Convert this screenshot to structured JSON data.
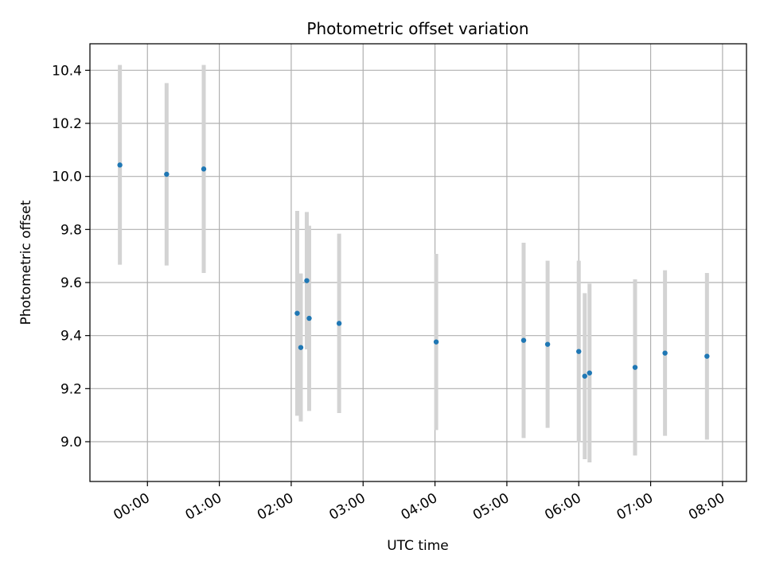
{
  "chart_data": {
    "type": "scatter",
    "title": "Photometric offset variation",
    "xlabel": "UTC time",
    "ylabel": "Photometric offset",
    "x_ticks": [
      "00:00",
      "01:00",
      "02:00",
      "03:00",
      "04:00",
      "05:00",
      "06:00",
      "07:00",
      "08:00"
    ],
    "y_ticks": [
      "9.0",
      "9.2",
      "9.4",
      "9.6",
      "9.8",
      "10.0",
      "10.2",
      "10.4"
    ],
    "xlim": [
      "-00:48",
      "08:20"
    ],
    "ylim": [
      8.85,
      10.5
    ],
    "grid": true,
    "series": [
      {
        "marker_color": "#1f77b4",
        "errorbar_color": "#d3d3d3",
        "points": [
          {
            "x": "-00:23",
            "y": 10.043,
            "err_low": 9.667,
            "err_high": 10.42
          },
          {
            "x": "00:16",
            "y": 10.008,
            "err_low": 9.664,
            "err_high": 10.352
          },
          {
            "x": "00:47",
            "y": 10.028,
            "err_low": 9.636,
            "err_high": 10.42
          },
          {
            "x": "02:05",
            "y": 9.484,
            "err_low": 9.098,
            "err_high": 9.87
          },
          {
            "x": "02:08",
            "y": 9.355,
            "err_low": 9.076,
            "err_high": 9.634
          },
          {
            "x": "02:13",
            "y": 9.607,
            "err_low": 9.348,
            "err_high": 9.866
          },
          {
            "x": "02:15",
            "y": 9.465,
            "err_low": 9.116,
            "err_high": 9.814
          },
          {
            "x": "02:40",
            "y": 9.446,
            "err_low": 9.108,
            "err_high": 9.784
          },
          {
            "x": "04:01",
            "y": 9.376,
            "err_low": 9.044,
            "err_high": 9.708
          },
          {
            "x": "05:14",
            "y": 9.382,
            "err_low": 9.014,
            "err_high": 9.75
          },
          {
            "x": "05:34",
            "y": 9.367,
            "err_low": 9.052,
            "err_high": 9.682
          },
          {
            "x": "06:00",
            "y": 9.34,
            "err_low": 8.998,
            "err_high": 9.682
          },
          {
            "x": "06:05",
            "y": 9.247,
            "err_low": 8.934,
            "err_high": 9.56
          },
          {
            "x": "06:09",
            "y": 9.259,
            "err_low": 8.922,
            "err_high": 9.596
          },
          {
            "x": "06:47",
            "y": 9.28,
            "err_low": 8.948,
            "err_high": 9.612
          },
          {
            "x": "07:12",
            "y": 9.334,
            "err_low": 9.022,
            "err_high": 9.646
          },
          {
            "x": "07:47",
            "y": 9.322,
            "err_low": 9.008,
            "err_high": 9.636
          }
        ]
      }
    ]
  }
}
